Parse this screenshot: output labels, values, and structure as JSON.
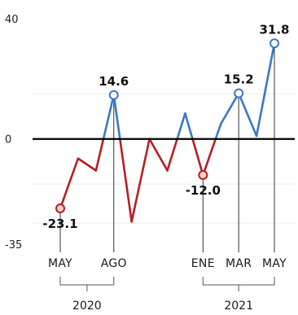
{
  "chart_data": {
    "type": "line",
    "ylim": [
      -35,
      40
    ],
    "y_ticks": [
      "40",
      "0",
      "-35"
    ],
    "x": [
      "2020-05",
      "2020-06",
      "2020-07",
      "2020-08",
      "2020-09",
      "2020-10",
      "2020-11",
      "2020-12",
      "2021-01",
      "2021-02",
      "2021-03",
      "2021-04",
      "2021-05"
    ],
    "values": [
      -23.1,
      -6.5,
      -10.5,
      14.6,
      -27.5,
      0,
      -10.5,
      8.5,
      -12.0,
      5,
      15.2,
      1,
      31.8
    ],
    "x_tick_labels": [
      {
        "label": "MAY",
        "x": "2020-05"
      },
      {
        "label": "AGO",
        "x": "2020-08"
      },
      {
        "label": "ENE",
        "x": "2021-01"
      },
      {
        "label": "MAR",
        "x": "2021-03"
      },
      {
        "label": "MAY",
        "x": "2021-05"
      }
    ],
    "year_groups": [
      {
        "label": "2020",
        "from": "2020-05",
        "to": "2020-08"
      },
      {
        "label": "2021",
        "from": "2021-01",
        "to": "2021-05"
      }
    ],
    "annotated_points": [
      {
        "x": "2020-05",
        "value": -23.1,
        "text": "-23.1",
        "color": "#b81d24"
      },
      {
        "x": "2020-08",
        "value": 14.6,
        "text": "14.6",
        "color": "#3a78c4"
      },
      {
        "x": "2021-01",
        "value": -12.0,
        "text": "-12.0",
        "color": "#b81d24"
      },
      {
        "x": "2021-03",
        "value": 15.2,
        "text": "15.2",
        "color": "#3a78c4"
      },
      {
        "x": "2021-05",
        "value": 31.8,
        "text": "31.8",
        "color": "#3a78c4"
      }
    ],
    "colors": {
      "positive": "#3a78c4",
      "negative": "#b81d24",
      "marker_fill": "#f2d4c0",
      "zero_line": "#000000"
    },
    "grid": false
  }
}
